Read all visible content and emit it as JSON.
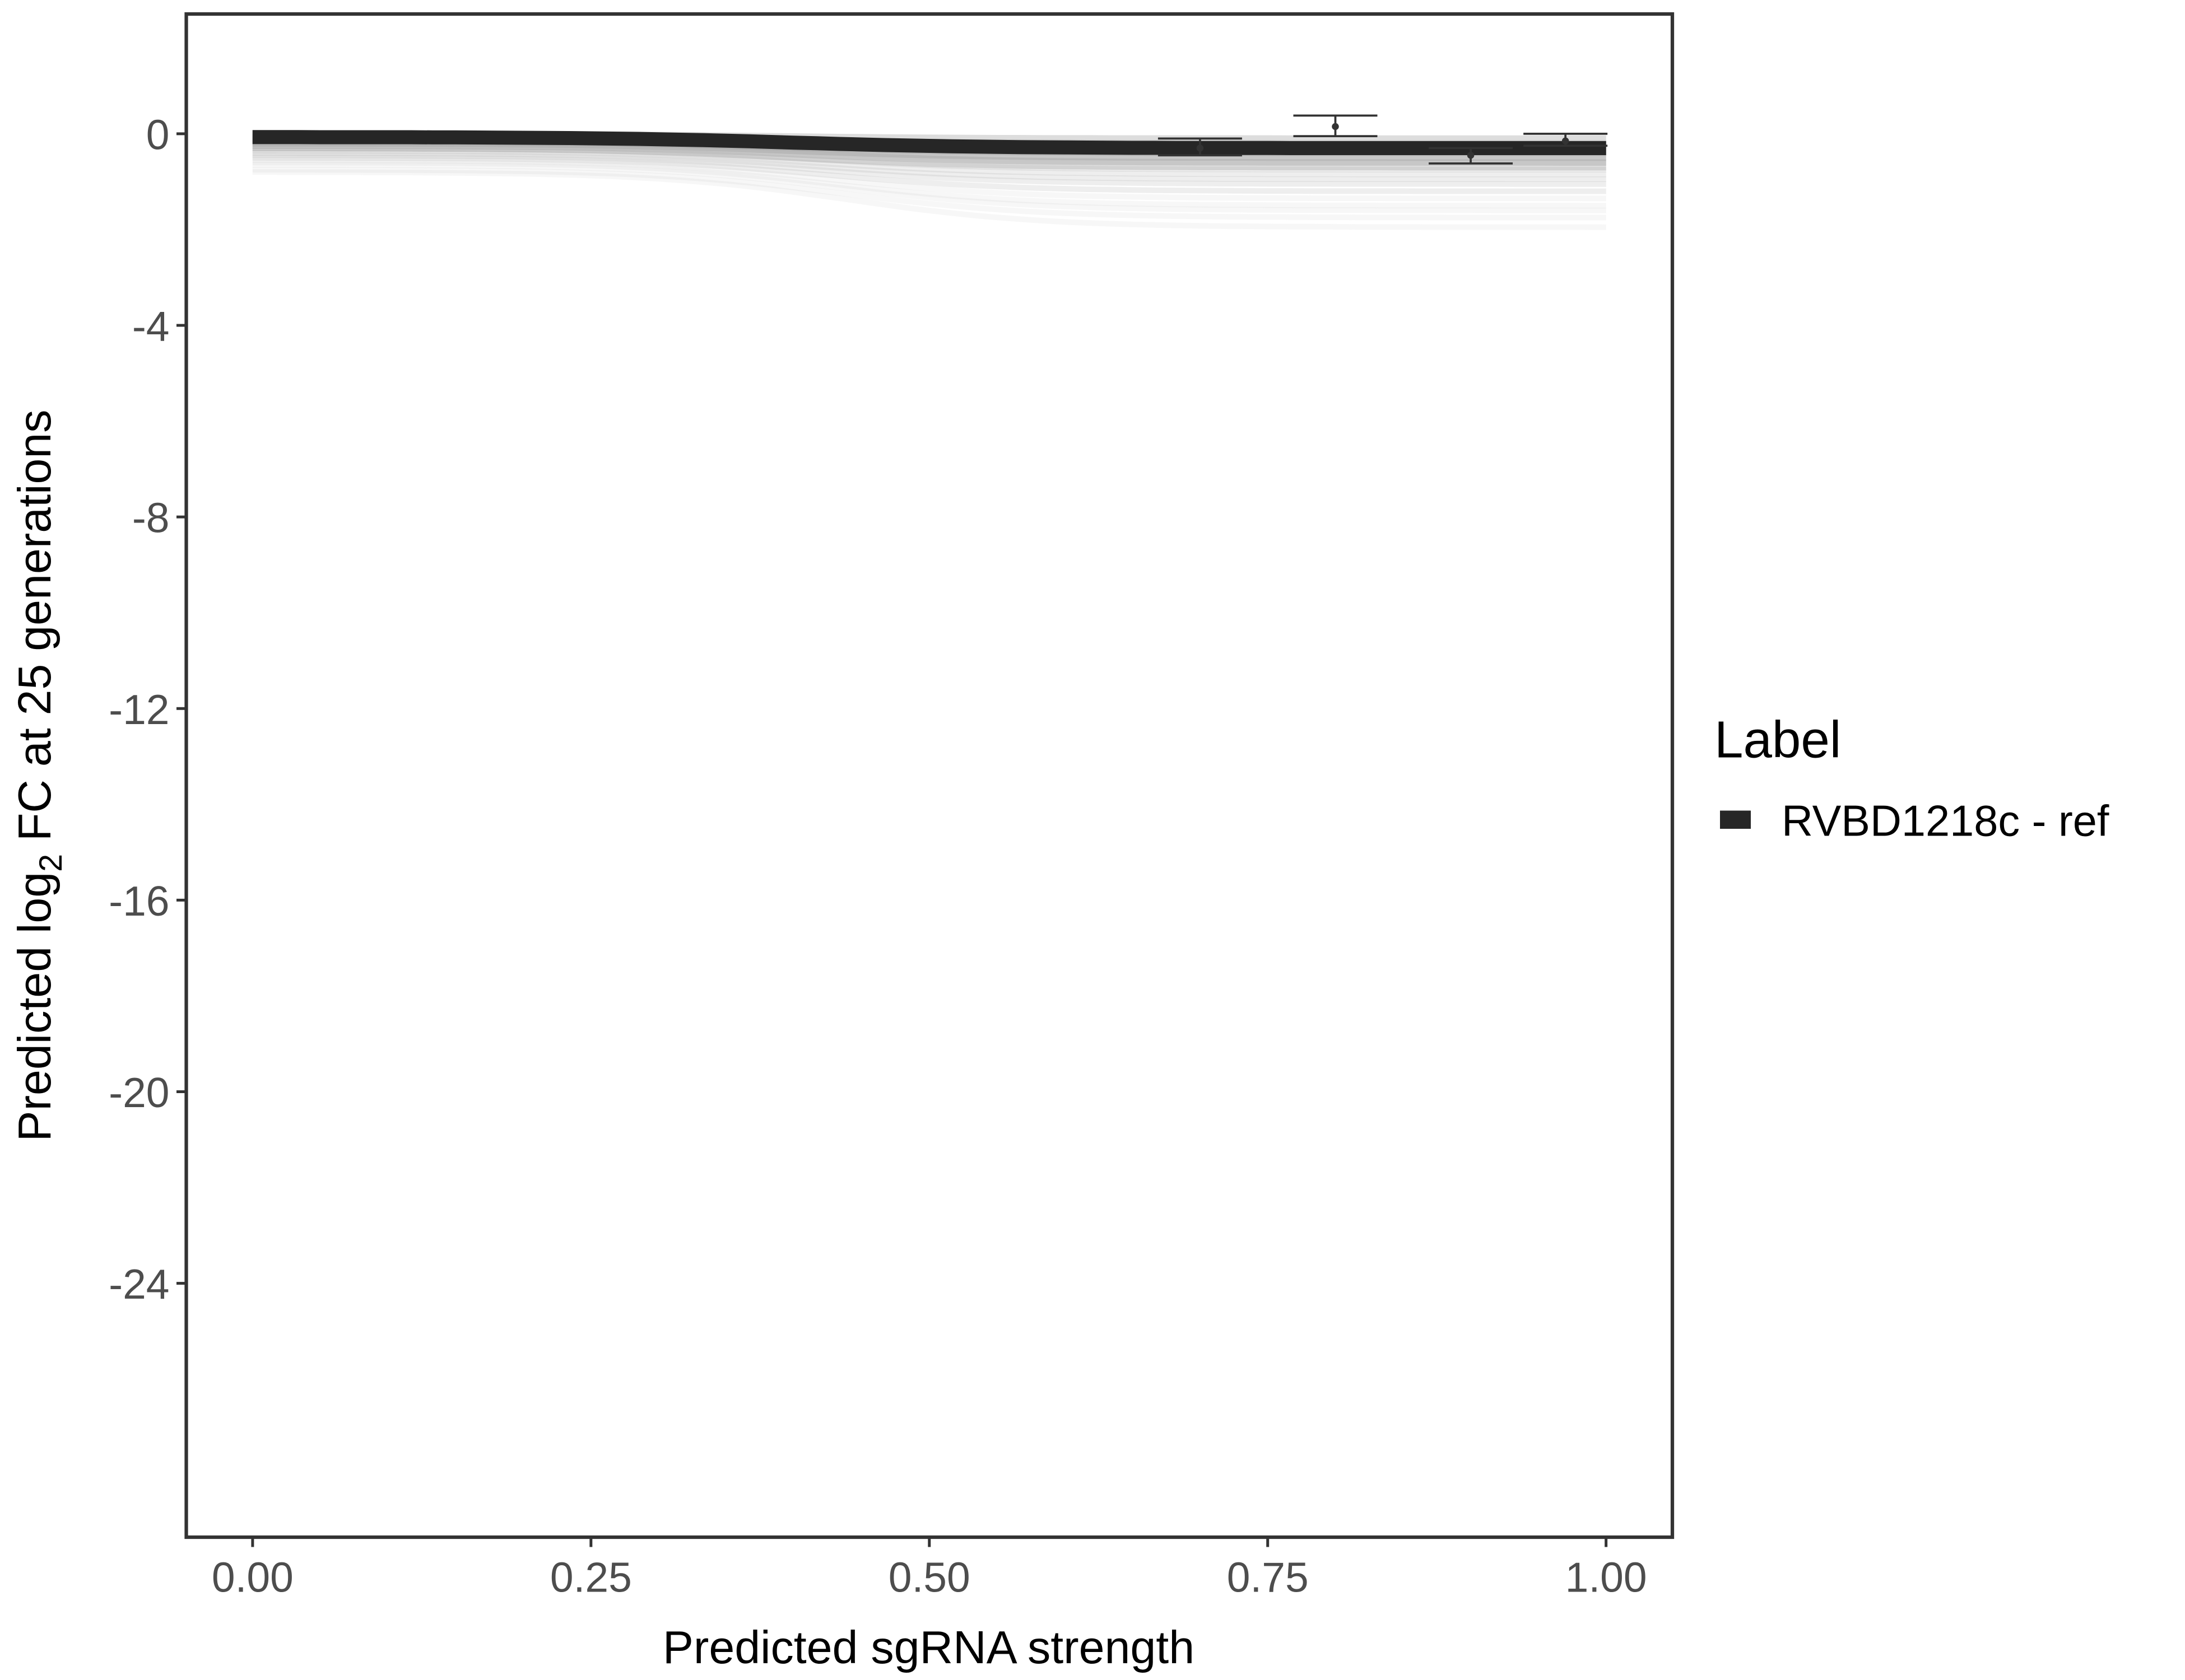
{
  "chart_data": {
    "type": "line",
    "title": "",
    "xlabel": "Predicted sgRNA strength",
    "ylabel_parts": {
      "prefix": "Predicted  log",
      "subscript": "2",
      "suffix": " FC at 25 generations"
    },
    "xlim": [
      -0.049,
      1.049
    ],
    "ylim": [
      -29.3,
      2.5
    ],
    "x_ticks": [
      0,
      0.25,
      0.5,
      0.75,
      1
    ],
    "x_tick_labels": [
      "0.00",
      "0.25",
      "0.50",
      "0.75",
      "1.00"
    ],
    "y_ticks": [
      0,
      -4,
      -8,
      -12,
      -16,
      -20,
      -24
    ],
    "y_tick_labels": [
      "0",
      "-4",
      "-8",
      "-12",
      "-16",
      "-20",
      "-24"
    ],
    "grid": false,
    "legend": {
      "title": "Label",
      "placement": "right",
      "entries": [
        {
          "name": "RVBD1218c - ref",
          "color": "#262626"
        }
      ]
    },
    "main_curve": {
      "name": "RVBD1218c - ref",
      "color": "#262626",
      "start": -0.07,
      "end": -0.3,
      "midpoint": 0.4
    },
    "posterior_draws": {
      "color": "#9e9e9e",
      "curves": [
        {
          "start": -0.05,
          "end": -0.15
        },
        {
          "start": -0.1,
          "end": -0.25
        },
        {
          "start": -0.12,
          "end": -0.35
        },
        {
          "start": -0.15,
          "end": -0.45
        },
        {
          "start": -0.2,
          "end": -0.55
        },
        {
          "start": -0.25,
          "end": -0.65
        },
        {
          "start": -0.3,
          "end": -0.75
        },
        {
          "start": -0.35,
          "end": -0.85
        },
        {
          "start": -0.4,
          "end": -0.95
        },
        {
          "start": -0.45,
          "end": -1.05
        },
        {
          "start": -0.5,
          "end": -1.2
        },
        {
          "start": -0.55,
          "end": -1.35
        },
        {
          "start": -0.6,
          "end": -1.5
        },
        {
          "start": -0.65,
          "end": -1.6
        },
        {
          "start": -0.75,
          "end": -1.75
        },
        {
          "start": -0.8,
          "end": -1.95
        }
      ]
    },
    "observed": [
      {
        "x": 0.7,
        "mean": -0.3,
        "lower": -0.45,
        "upper": -0.1
      },
      {
        "x": 0.8,
        "mean": 0.15,
        "lower": -0.05,
        "upper": 0.38
      },
      {
        "x": 0.9,
        "mean": -0.45,
        "lower": -0.62,
        "upper": -0.3
      },
      {
        "x": 0.97,
        "mean": -0.15,
        "lower": -0.25,
        "upper": 0.0
      }
    ]
  }
}
